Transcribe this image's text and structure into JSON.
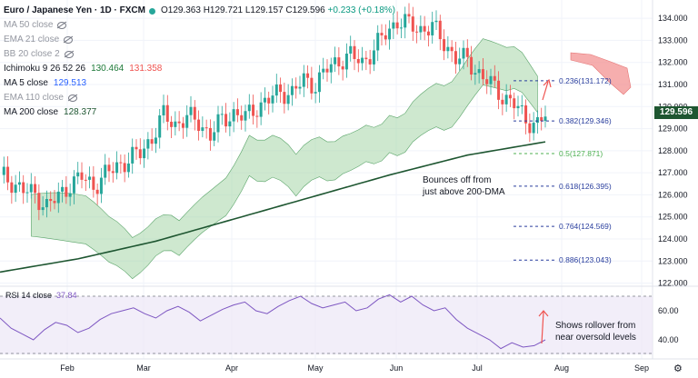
{
  "header": {
    "symbol": "Euro / Japanese Yen · 1D · FXCM",
    "open": "O129.363",
    "high": "H129.721",
    "low": "L129.157",
    "close": "C129.596",
    "change": "+0.233 (+0.18%)"
  },
  "indicators": [
    {
      "label": "MA 50 close",
      "value": "",
      "muted": true
    },
    {
      "label": "EMA 21 close",
      "value": "",
      "muted": true
    },
    {
      "label": "BB 20 close 2",
      "value": "",
      "muted": true
    },
    {
      "label": "Ichimoku 9 26 52 26",
      "value": "130.464",
      "value2": "131.358",
      "muted": false
    },
    {
      "label": "MA 5 close",
      "value": "129.513",
      "muted": false
    },
    {
      "label": "EMA 110 close",
      "value": "",
      "muted": true
    },
    {
      "label": "MA 200 close",
      "value": "128.377",
      "muted": false
    }
  ],
  "last_price": "129.596",
  "colors": {
    "up": "#26a69a",
    "down": "#ef5350",
    "ma200": "#1e5631",
    "ma5": "#2962ff",
    "cloud_green": "#a5d6a7",
    "cloud_red": "#f28b8b",
    "rsi": "#7e57c2",
    "fib": "#2a3f9e"
  },
  "annotations": {
    "bounce_line1": "Bounces off from",
    "bounce_line2": "just above 200-DMA",
    "rsi_line1": "Shows rollover from",
    "rsi_line2": "near oversold levels"
  },
  "rsi_label": "RSI 14 close",
  "rsi_value": "37.84",
  "chart_data": {
    "type": "candlestick",
    "title": "Euro / Japanese Yen · 1D · FXCM",
    "price_axis": {
      "ticks": [
        "134.000",
        "133.000",
        "132.000",
        "131.000",
        "130.000",
        "129.000",
        "128.000",
        "127.000",
        "126.000",
        "125.000",
        "124.000",
        "123.000",
        "122.000"
      ],
      "range": [
        121.9,
        134.5
      ]
    },
    "time_axis": {
      "ticks": [
        "Feb",
        "Mar",
        "Apr",
        "May",
        "Jun",
        "Jul",
        "Aug",
        "Sep"
      ]
    },
    "close_path": [
      [
        0,
        126.9
      ],
      [
        3,
        126.6
      ],
      [
        6,
        126.2
      ],
      [
        9,
        126.0
      ],
      [
        12,
        125.5
      ],
      [
        15,
        125.9
      ],
      [
        18,
        126.5
      ],
      [
        21,
        126.8
      ],
      [
        24,
        126.4
      ],
      [
        27,
        126.9
      ],
      [
        30,
        127.3
      ],
      [
        33,
        127.6
      ],
      [
        36,
        127.9
      ],
      [
        39,
        128.6
      ],
      [
        42,
        129.6
      ],
      [
        45,
        129.2
      ],
      [
        48,
        129.5
      ],
      [
        51,
        129.3
      ],
      [
        54,
        128.7
      ],
      [
        57,
        129.4
      ],
      [
        60,
        129.7
      ],
      [
        63,
        129.5
      ],
      [
        66,
        130.0
      ],
      [
        69,
        130.3
      ],
      [
        72,
        130.7
      ],
      [
        75,
        130.6
      ],
      [
        78,
        131.2
      ],
      [
        81,
        131.0
      ],
      [
        84,
        131.7
      ],
      [
        87,
        132.1
      ],
      [
        90,
        132.3
      ],
      [
        93,
        132.0
      ],
      [
        96,
        132.6
      ],
      [
        99,
        133.3
      ],
      [
        102,
        133.9
      ],
      [
        105,
        133.7
      ],
      [
        108,
        133.5
      ],
      [
        111,
        133.6
      ],
      [
        114,
        132.9
      ],
      [
        117,
        132.2
      ],
      [
        120,
        132.1
      ],
      [
        123,
        131.5
      ],
      [
        126,
        131.0
      ],
      [
        129,
        130.5
      ],
      [
        132,
        130.1
      ],
      [
        135,
        129.4
      ],
      [
        138,
        129.2
      ],
      [
        140,
        129.6
      ]
    ],
    "ma200_path": [
      [
        0,
        122.5
      ],
      [
        20,
        123.1
      ],
      [
        40,
        123.9
      ],
      [
        60,
        124.9
      ],
      [
        80,
        125.9
      ],
      [
        100,
        126.9
      ],
      [
        120,
        127.8
      ],
      [
        140,
        128.4
      ]
    ],
    "fibonacci": [
      {
        "label": "0.236(131.172)",
        "value": 131.172
      },
      {
        "label": "0.382(129.346)",
        "value": 129.346
      },
      {
        "label": "0.5(127.871)",
        "value": 127.871
      },
      {
        "label": "0.618(126.395)",
        "value": 126.395
      },
      {
        "label": "0.764(124.569)",
        "value": 124.569
      },
      {
        "label": "0.886(123.043)",
        "value": 123.043
      }
    ],
    "rsi": {
      "ticks": [
        "60.00",
        "40.00"
      ],
      "range": [
        30,
        75
      ],
      "values": [
        55,
        48,
        44,
        40,
        47,
        52,
        50,
        45,
        48,
        54,
        58,
        60,
        62,
        58,
        55,
        60,
        63,
        59,
        53,
        57,
        61,
        64,
        66,
        60,
        58,
        63,
        67,
        70,
        65,
        62,
        64,
        66,
        60,
        62,
        68,
        71,
        66,
        70,
        64,
        60,
        62,
        54,
        48,
        44,
        40,
        34,
        38,
        35,
        36,
        40
      ]
    }
  }
}
